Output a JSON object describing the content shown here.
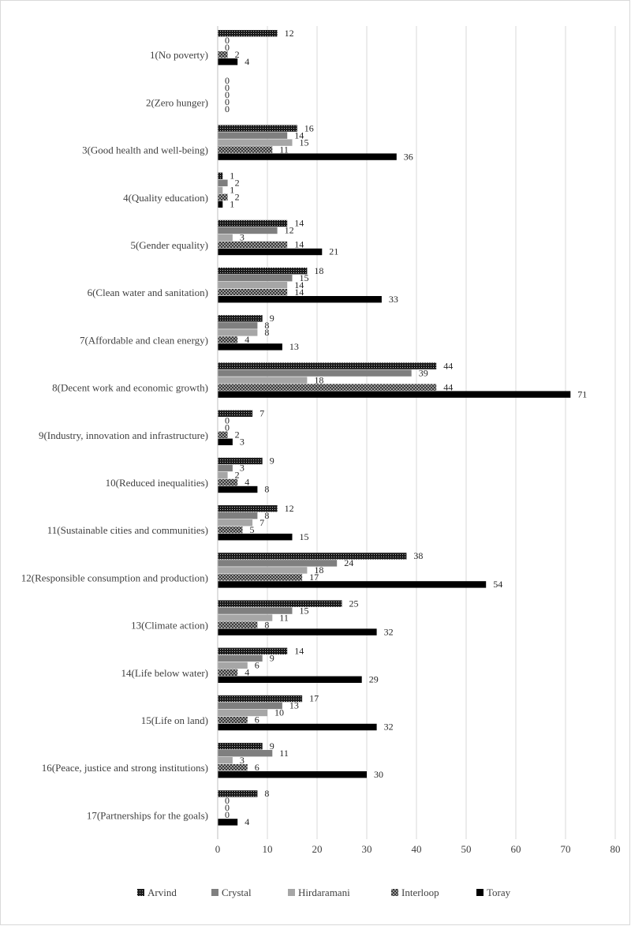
{
  "chart_data": {
    "type": "bar",
    "orientation": "horizontal",
    "title": "",
    "xlabel": "",
    "ylabel": "",
    "xlim": [
      0,
      80
    ],
    "xticks": [
      0,
      10,
      20,
      30,
      40,
      50,
      60,
      70,
      80
    ],
    "grid": true,
    "legend_position": "bottom",
    "categories": [
      "1(No poverty)",
      "2(Zero hunger)",
      "3(Good health and well-being)",
      "4(Quality education)",
      "5(Gender equality)",
      "6(Clean water and sanitation)",
      "7(Affordable and clean energy)",
      "8(Decent work and economic growth)",
      "9(Industry, innovation and infrastructure)",
      "10(Reduced inequalities)",
      "11(Sustainable cities and communities)",
      "12(Responsible consumption and production)",
      "13(Climate action)",
      "14(Life below water)",
      "15(Life on land)",
      "16(Peace, justice and strong institutions)",
      "17(Partnerships for the goals)"
    ],
    "series": [
      {
        "name": "Arvind",
        "color": "#262626",
        "pattern": "dots",
        "values": [
          12,
          0,
          16,
          1,
          14,
          18,
          9,
          44,
          7,
          9,
          12,
          38,
          25,
          14,
          17,
          9,
          8
        ]
      },
      {
        "name": "Crystal",
        "color": "#7f7f7f",
        "pattern": "solid",
        "values": [
          0,
          0,
          14,
          2,
          12,
          15,
          8,
          39,
          0,
          3,
          8,
          24,
          15,
          9,
          13,
          11,
          0
        ]
      },
      {
        "name": "Hirdaramani",
        "color": "#a6a6a6",
        "pattern": "solid",
        "values": [
          0,
          0,
          15,
          1,
          3,
          14,
          8,
          18,
          0,
          2,
          7,
          18,
          11,
          6,
          10,
          3,
          0
        ]
      },
      {
        "name": "Interloop",
        "color": "#595959",
        "pattern": "checker",
        "values": [
          2,
          0,
          11,
          2,
          14,
          14,
          4,
          44,
          2,
          4,
          5,
          17,
          8,
          4,
          6,
          6,
          0
        ]
      },
      {
        "name": "Toray",
        "color": "#000000",
        "pattern": "solid",
        "values": [
          4,
          0,
          36,
          1,
          21,
          33,
          13,
          71,
          3,
          8,
          15,
          54,
          32,
          29,
          32,
          30,
          4
        ]
      }
    ]
  }
}
